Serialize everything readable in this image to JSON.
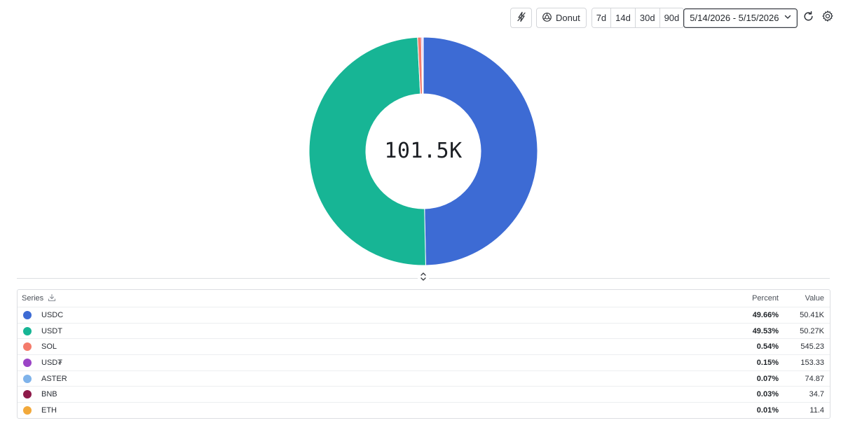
{
  "toolbar": {
    "lightning_icon": "lightning-slash-icon",
    "chart_type_label": "Donut",
    "ranges": [
      "7d",
      "14d",
      "30d",
      "90d"
    ],
    "date_range": "5/14/2026 - 5/15/2026",
    "refresh_icon": "refresh-icon",
    "settings_icon": "gear-icon"
  },
  "center_total": "101.5K",
  "legend": {
    "header_series": "Series",
    "header_percent": "Percent",
    "header_value": "Value",
    "rows": [
      {
        "name": "USDC",
        "percent": "49.66%",
        "value": "50.41K",
        "color": "#3d6bd4"
      },
      {
        "name": "USDT",
        "percent": "49.53%",
        "value": "50.27K",
        "color": "#17b595"
      },
      {
        "name": "SOL",
        "percent": "0.54%",
        "value": "545.23",
        "color": "#f47b6b"
      },
      {
        "name": "USD₮",
        "percent": "0.15%",
        "value": "153.33",
        "color": "#9b44c6"
      },
      {
        "name": "ASTER",
        "percent": "0.07%",
        "value": "74.87",
        "color": "#7fb3ea"
      },
      {
        "name": "BNB",
        "percent": "0.03%",
        "value": "34.7",
        "color": "#8e1a4a"
      },
      {
        "name": "ETH",
        "percent": "0.01%",
        "value": "11.4",
        "color": "#f2a93b"
      }
    ]
  },
  "chart_data": {
    "type": "pie",
    "donut": true,
    "categories": [
      "USDC",
      "USDT",
      "SOL",
      "USD₮",
      "ASTER",
      "BNB",
      "ETH"
    ],
    "values": [
      50410,
      50270,
      545.23,
      153.33,
      74.87,
      34.7,
      11.4
    ],
    "percents": [
      49.66,
      49.53,
      0.54,
      0.15,
      0.07,
      0.03,
      0.01
    ],
    "colors": [
      "#3d6bd4",
      "#17b595",
      "#f47b6b",
      "#9b44c6",
      "#7fb3ea",
      "#8e1a4a",
      "#f2a93b"
    ],
    "center_label": "101.5K"
  }
}
